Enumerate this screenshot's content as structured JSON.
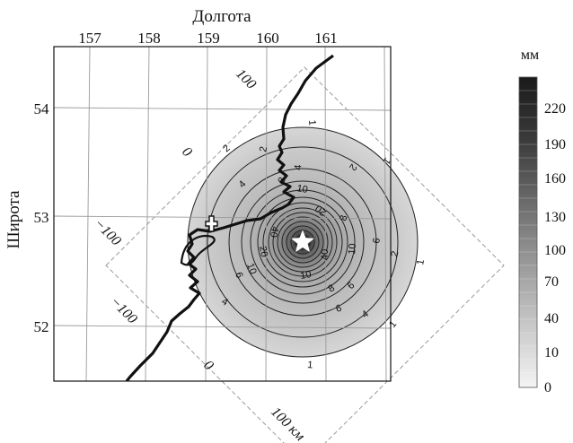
{
  "map": {
    "xlabel": "Долгота",
    "ylabel": "Широта",
    "lon_ticks": [
      "157",
      "158",
      "159",
      "160",
      "161"
    ],
    "lat_ticks": [
      "54",
      "53",
      "52"
    ],
    "km_labels": [
      "100",
      "0",
      "−100",
      "−100",
      "0",
      "100 км"
    ],
    "contour_labels": [
      "1",
      "1",
      "1",
      "1",
      "1",
      "2",
      "2",
      "2",
      "2",
      "4",
      "4",
      "4",
      "4",
      "6",
      "6",
      "6",
      "6",
      "8",
      "8",
      "8",
      "10",
      "10",
      "10",
      "10",
      "20",
      "20",
      "40",
      "40"
    ]
  },
  "colorbar": {
    "unit": "мм",
    "ticks": [
      "220",
      "190",
      "160",
      "130",
      "100",
      "70",
      "40",
      "10",
      "0"
    ]
  },
  "colors": {
    "background": "#ffffff",
    "grid": "#9a9a9a",
    "coastline": "#111111",
    "contour": "#222222"
  },
  "icons": [
    "star-icon",
    "cross-icon"
  ]
}
